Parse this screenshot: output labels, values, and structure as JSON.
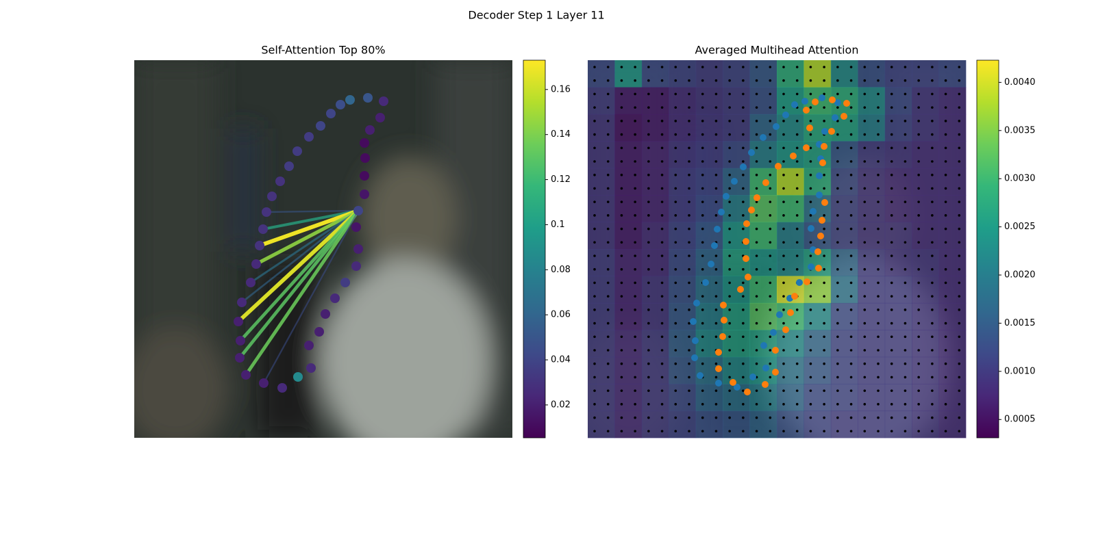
{
  "title": "Decoder Step 1 Layer 11",
  "chart_data": [
    {
      "type": "attention_graph",
      "title": "Self-Attention Top 80%",
      "xlim": [
        0,
        552
      ],
      "ylim": [
        0,
        552
      ],
      "points": {
        "x": [
          341,
          315,
          301,
          287,
          272,
          255,
          238,
          226,
          213,
          201,
          193,
          188,
          183,
          178,
          170,
          157,
          152,
          155,
          154,
          163,
          189,
          216,
          239,
          258,
          255,
          270,
          279,
          293,
          308,
          324,
          327,
          324,
          327,
          336,
          336,
          337,
          336,
          344,
          359,
          364
        ],
        "y": [
          55,
          58,
          65,
          78,
          96,
          112,
          133,
          155,
          177,
          199,
          222,
          247,
          271,
          298,
          325,
          354,
          382,
          410,
          435,
          460,
          472,
          479,
          463,
          450,
          417,
          397,
          371,
          348,
          325,
          301,
          276,
          244,
          220,
          196,
          169,
          143,
          121,
          102,
          84,
          60
        ],
        "values": [
          0.05,
          0.06,
          0.045,
          0.04,
          0.04,
          0.035,
          0.035,
          0.035,
          0.03,
          0.03,
          0.03,
          0.03,
          0.03,
          0.025,
          0.025,
          0.025,
          0.02,
          0.02,
          0.02,
          0.02,
          0.02,
          0.025,
          0.085,
          0.025,
          0.02,
          0.02,
          0.02,
          0.025,
          0.035,
          0.025,
          0.02,
          0.015,
          0.04,
          0.015,
          0.01,
          0.01,
          0.01,
          0.02,
          0.02,
          0.025
        ]
      },
      "lines": {
        "source": 32,
        "targets": [
          10,
          11,
          12,
          13,
          14,
          15,
          16,
          17,
          18,
          19,
          20
        ],
        "values": [
          0.05,
          0.105,
          0.17,
          0.145,
          0.07,
          0.06,
          0.165,
          0.13,
          0.13,
          0.135,
          0.045
        ]
      },
      "colorbar": {
        "clim": [
          0.0054,
          0.173
        ],
        "ticks": [
          0.02,
          0.04,
          0.06,
          0.08,
          0.1,
          0.12,
          0.14,
          0.16
        ]
      }
    },
    {
      "type": "heatmap",
      "title": "Averaged Multihead Attention",
      "xlim": [
        0,
        552
      ],
      "ylim": [
        0,
        552
      ],
      "heatmap": [
        [
          0.0012,
          0.0024,
          0.0012,
          0.0011,
          0.001,
          0.0011,
          0.0014,
          0.0028,
          0.0038,
          0.0022,
          0.0013,
          0.0011,
          0.0011,
          0.0012
        ],
        [
          0.001,
          0.0006,
          0.0006,
          0.0008,
          0.0009,
          0.001,
          0.0013,
          0.0025,
          0.003,
          0.0028,
          0.0022,
          0.0012,
          0.0009,
          0.0008
        ],
        [
          0.0009,
          0.0005,
          0.0006,
          0.0008,
          0.0009,
          0.001,
          0.0016,
          0.0022,
          0.0027,
          0.0026,
          0.002,
          0.0011,
          0.0009,
          0.0008
        ],
        [
          0.0009,
          0.0006,
          0.0007,
          0.0009,
          0.001,
          0.0012,
          0.002,
          0.0024,
          0.0026,
          0.0014,
          0.001,
          0.0009,
          0.0008,
          0.0008
        ],
        [
          0.0009,
          0.0006,
          0.0007,
          0.001,
          0.0011,
          0.0016,
          0.003,
          0.0038,
          0.0028,
          0.0012,
          0.0009,
          0.0008,
          0.0008,
          0.0008
        ],
        [
          0.0009,
          0.0006,
          0.0007,
          0.001,
          0.0012,
          0.002,
          0.0032,
          0.003,
          0.0018,
          0.0011,
          0.0009,
          0.0008,
          0.0008,
          0.0008
        ],
        [
          0.0009,
          0.0006,
          0.0008,
          0.0011,
          0.0014,
          0.0024,
          0.003,
          0.002,
          0.0014,
          0.0011,
          0.0009,
          0.0009,
          0.0008,
          0.0008
        ],
        [
          0.001,
          0.0007,
          0.0008,
          0.0012,
          0.0016,
          0.0026,
          0.0024,
          0.0022,
          0.0026,
          0.0016,
          0.001,
          0.0009,
          0.0009,
          0.0008
        ],
        [
          0.001,
          0.0007,
          0.0009,
          0.0013,
          0.0018,
          0.0024,
          0.003,
          0.004,
          0.0036,
          0.0018,
          0.001,
          0.001,
          0.0009,
          0.0008
        ],
        [
          0.001,
          0.0007,
          0.0009,
          0.0014,
          0.002,
          0.0026,
          0.0032,
          0.003,
          0.0022,
          0.0012,
          0.001,
          0.001,
          0.0009,
          0.0008
        ],
        [
          0.001,
          0.0008,
          0.001,
          0.0015,
          0.0022,
          0.0026,
          0.0026,
          0.0022,
          0.0016,
          0.0011,
          0.001,
          0.001,
          0.0009,
          0.0008
        ],
        [
          0.001,
          0.0008,
          0.001,
          0.0014,
          0.0018,
          0.0022,
          0.0024,
          0.0018,
          0.0014,
          0.0011,
          0.001,
          0.001,
          0.0009,
          0.0008
        ],
        [
          0.001,
          0.0008,
          0.001,
          0.0012,
          0.0016,
          0.0018,
          0.002,
          0.0016,
          0.0012,
          0.0011,
          0.001,
          0.001,
          0.0009,
          0.0008
        ],
        [
          0.001,
          0.0008,
          0.001,
          0.0011,
          0.0013,
          0.0014,
          0.0016,
          0.0013,
          0.0011,
          0.001,
          0.001,
          0.001,
          0.0009,
          0.0008
        ]
      ],
      "series": [
        {
          "color": "#1f77b4",
          "x": [
            342,
            317,
            302,
            289,
            275,
            256,
            239,
            227,
            214,
            202,
            195,
            189,
            185,
            180,
            172,
            159,
            154,
            157,
            156,
            164,
            191,
            218,
            241,
            260,
            257,
            271,
            280,
            295,
            309,
            326,
            329,
            326,
            329,
            338,
            338,
            340,
            338,
            346,
            361,
            365
          ],
          "y": [
            55,
            60,
            65,
            80,
            97,
            113,
            135,
            156,
            177,
            199,
            222,
            247,
            271,
            298,
            325,
            355,
            382,
            410,
            435,
            461,
            472,
            478,
            463,
            450,
            417,
            398,
            372,
            348,
            325,
            302,
            277,
            246,
            221,
            197,
            169,
            144,
            123,
            104,
            84,
            62
          ]
        },
        {
          "color": "#ff7f0e",
          "x": [
            357,
            378,
            374,
            356,
            345,
            343,
            346,
            342,
            340,
            336,
            337,
            320,
            302,
            296,
            289,
            274,
            274,
            259,
            233,
            212,
            191,
            191,
            197,
            199,
            198,
            223,
            234,
            231,
            231,
            232,
            239,
            247,
            260,
            278,
            300,
            319,
            324,
            319,
            332
          ],
          "y": [
            58,
            63,
            82,
            104,
            126,
            150,
            208,
            234,
            257,
            280,
            304,
            324,
            345,
            369,
            394,
            424,
            456,
            474,
            485,
            471,
            451,
            427,
            404,
            380,
            358,
            335,
            317,
            290,
            265,
            239,
            219,
            201,
            179,
            155,
            140,
            128,
            99,
            73,
            61
          ]
        }
      ],
      "colorbar": {
        "clim": [
          0.00031,
          0.00423
        ],
        "ticks": [
          0.0005,
          0.001,
          0.0015,
          0.002,
          0.0025,
          0.003,
          0.0035,
          0.004
        ],
        "tick_labels": [
          "0.0005",
          "0.0010",
          "0.0015",
          "0.0020",
          "0.0025",
          "0.0030",
          "0.0035",
          "0.0040"
        ]
      }
    }
  ]
}
